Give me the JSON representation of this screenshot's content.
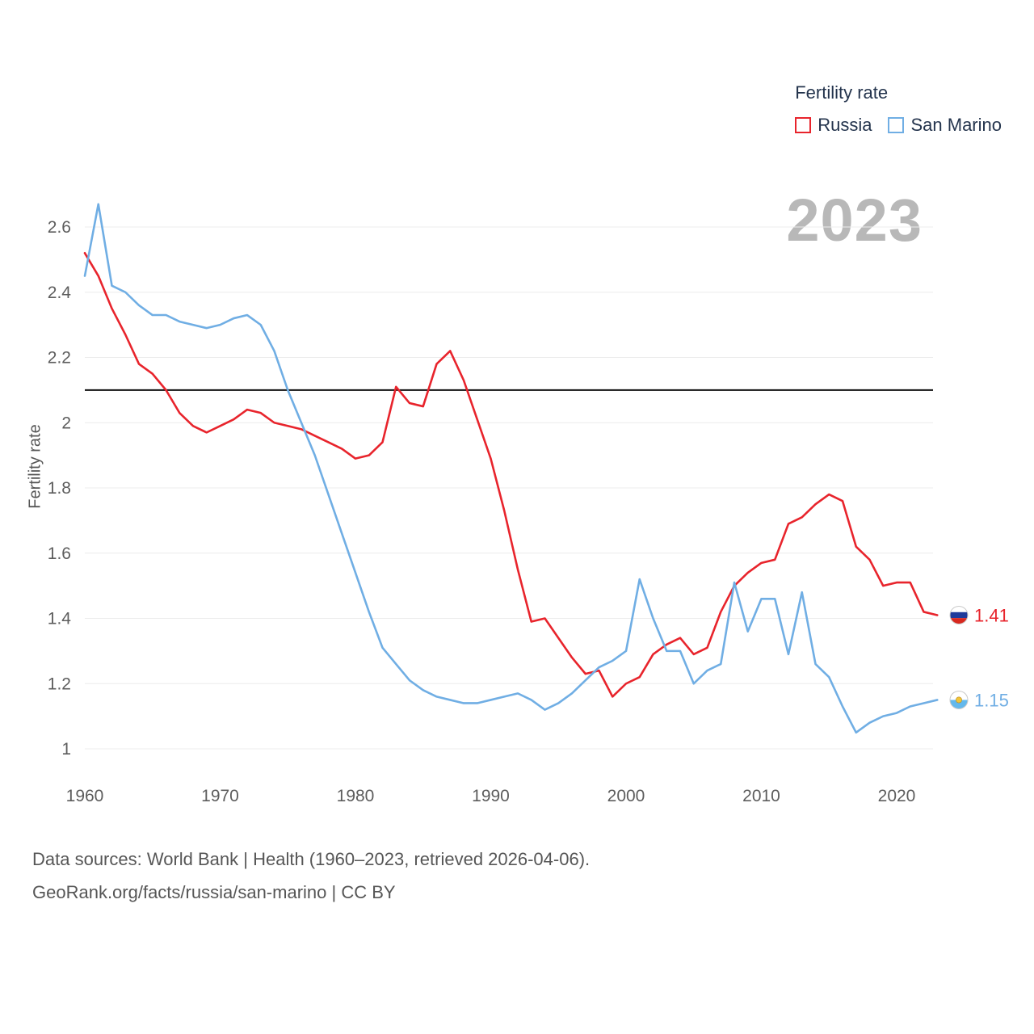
{
  "legend": {
    "title": "Fertility rate",
    "series": [
      {
        "label": "Russia",
        "color": "#e8242c"
      },
      {
        "label": "San Marino",
        "color": "#70aee4"
      }
    ]
  },
  "watermark": "2023",
  "ylabel": "Fertility rate",
  "footer": {
    "line1": "Data sources: World Bank | Health (1960–2023, retrieved 2026-04-06).",
    "line2": "GeoRank.org/facts/russia/san-marino | CC BY"
  },
  "chart_data": {
    "type": "line",
    "title": "Fertility rate",
    "xlabel": "",
    "ylabel": "Fertility rate",
    "ylim": [
      1,
      2.7
    ],
    "grid": true,
    "legend_position": "top-right",
    "xticks": [
      1960,
      1970,
      1980,
      1990,
      2000,
      2010,
      2020
    ],
    "yticks": [
      1,
      1.2,
      1.4,
      1.6,
      1.8,
      2,
      2.2,
      2.4,
      2.6
    ],
    "reference_line": {
      "y": 2.1,
      "color": "#111111"
    },
    "x": [
      1960,
      1961,
      1962,
      1963,
      1964,
      1965,
      1966,
      1967,
      1968,
      1969,
      1970,
      1971,
      1972,
      1973,
      1974,
      1975,
      1976,
      1977,
      1978,
      1979,
      1980,
      1981,
      1982,
      1983,
      1984,
      1985,
      1986,
      1987,
      1988,
      1989,
      1990,
      1991,
      1992,
      1993,
      1994,
      1995,
      1996,
      1997,
      1998,
      1999,
      2000,
      2001,
      2002,
      2003,
      2004,
      2005,
      2006,
      2007,
      2008,
      2009,
      2010,
      2011,
      2012,
      2013,
      2014,
      2015,
      2016,
      2017,
      2018,
      2019,
      2020,
      2021,
      2022,
      2023
    ],
    "series": [
      {
        "name": "Russia",
        "color": "#e8242c",
        "flag": "russia",
        "end_label": "1.41",
        "values": [
          2.52,
          2.45,
          2.35,
          2.27,
          2.18,
          2.15,
          2.1,
          2.03,
          1.99,
          1.97,
          1.99,
          2.01,
          2.04,
          2.03,
          2.0,
          1.99,
          1.98,
          1.96,
          1.94,
          1.92,
          1.89,
          1.9,
          1.94,
          2.11,
          2.06,
          2.05,
          2.18,
          2.22,
          2.13,
          2.01,
          1.89,
          1.73,
          1.55,
          1.39,
          1.4,
          1.34,
          1.28,
          1.23,
          1.24,
          1.16,
          1.2,
          1.22,
          1.29,
          1.32,
          1.34,
          1.29,
          1.31,
          1.42,
          1.5,
          1.54,
          1.57,
          1.58,
          1.69,
          1.71,
          1.75,
          1.78,
          1.76,
          1.62,
          1.58,
          1.5,
          1.51,
          1.51,
          1.42,
          1.41
        ]
      },
      {
        "name": "San Marino",
        "color": "#70aee4",
        "flag": "san-marino",
        "end_label": "1.15",
        "values": [
          2.45,
          2.67,
          2.42,
          2.4,
          2.36,
          2.33,
          2.33,
          2.31,
          2.3,
          2.29,
          2.3,
          2.32,
          2.33,
          2.3,
          2.22,
          2.1,
          2.0,
          1.9,
          1.78,
          1.66,
          1.54,
          1.42,
          1.31,
          1.26,
          1.21,
          1.18,
          1.16,
          1.15,
          1.14,
          1.14,
          1.15,
          1.16,
          1.17,
          1.15,
          1.12,
          1.14,
          1.17,
          1.21,
          1.25,
          1.27,
          1.3,
          1.52,
          1.4,
          1.3,
          1.3,
          1.2,
          1.24,
          1.26,
          1.51,
          1.36,
          1.46,
          1.46,
          1.29,
          1.48,
          1.26,
          1.22,
          1.13,
          1.05,
          1.08,
          1.1,
          1.11,
          1.13,
          1.14,
          1.15
        ]
      }
    ]
  }
}
